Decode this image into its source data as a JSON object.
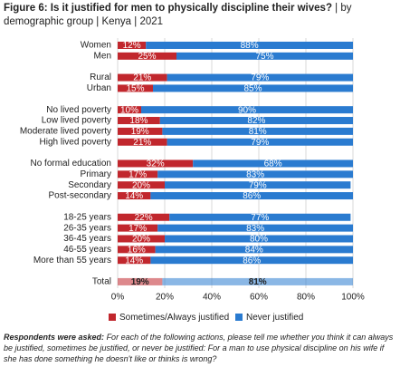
{
  "chart_data": {
    "type": "stacked-barh",
    "title": "Figure 6: Is it justified for men to physically discipline their wives?",
    "subtitle": "| by demographic group | Kenya | 2021",
    "categories": [
      "Women",
      "Men",
      null,
      "Rural",
      "Urban",
      null,
      "No lived poverty",
      "Low lived poverty",
      "Moderate lived poverty",
      "High lived poverty",
      null,
      "No formal education",
      "Primary",
      "Secondary",
      "Post-secondary",
      null,
      "18-25 years",
      "26-35 years",
      "36-45 years",
      "46-55 years",
      "More than 55 years",
      null,
      "Total"
    ],
    "series": [
      {
        "name": "Sometimes/Always justified",
        "color": "#c1272d",
        "values": [
          12,
          25,
          null,
          21,
          15,
          null,
          10,
          18,
          19,
          21,
          null,
          32,
          17,
          20,
          14,
          null,
          22,
          17,
          20,
          16,
          14,
          null,
          19
        ],
        "value_labels": [
          "12%",
          "25%",
          null,
          "21%",
          "15%",
          null,
          "10%",
          "18%",
          "19%",
          "21%",
          null,
          "32%",
          "17%",
          "20%",
          "14%",
          null,
          "22%",
          "17%",
          "20%",
          "16%",
          "14%",
          null,
          "19%"
        ]
      },
      {
        "name": "Never justified",
        "color": "#2a7bd0",
        "values": [
          88,
          75,
          null,
          79,
          85,
          null,
          90,
          82,
          81,
          79,
          null,
          68,
          83,
          79,
          86,
          null,
          77,
          83,
          80,
          84,
          86,
          null,
          81
        ],
        "value_labels": [
          "88%",
          "75%",
          null,
          "79%",
          "85%",
          null,
          "90%",
          "82%",
          "81%",
          "79%",
          null,
          "68%",
          "83%",
          "79%",
          "86%",
          null,
          "77%",
          "83%",
          "80%",
          "84%",
          "86%",
          null,
          "81%"
        ]
      }
    ],
    "xlim": [
      0,
      100
    ],
    "xticks": [
      {
        "value": 0,
        "label": "0%"
      },
      {
        "value": 20,
        "label": "20%"
      },
      {
        "value": 40,
        "label": "40%"
      },
      {
        "value": 60,
        "label": "60%"
      },
      {
        "value": 80,
        "label": "80%"
      },
      {
        "value": 100,
        "label": "100%"
      }
    ],
    "grid": true,
    "note_lead": "Respondents were asked:",
    "note": "For each of the following actions, please tell me whether you think it can always be justified, sometimes be justified, or never be justified: For a man to use physical discipline on his wife if she has done something he doesn't like or thinks is wrong?"
  }
}
